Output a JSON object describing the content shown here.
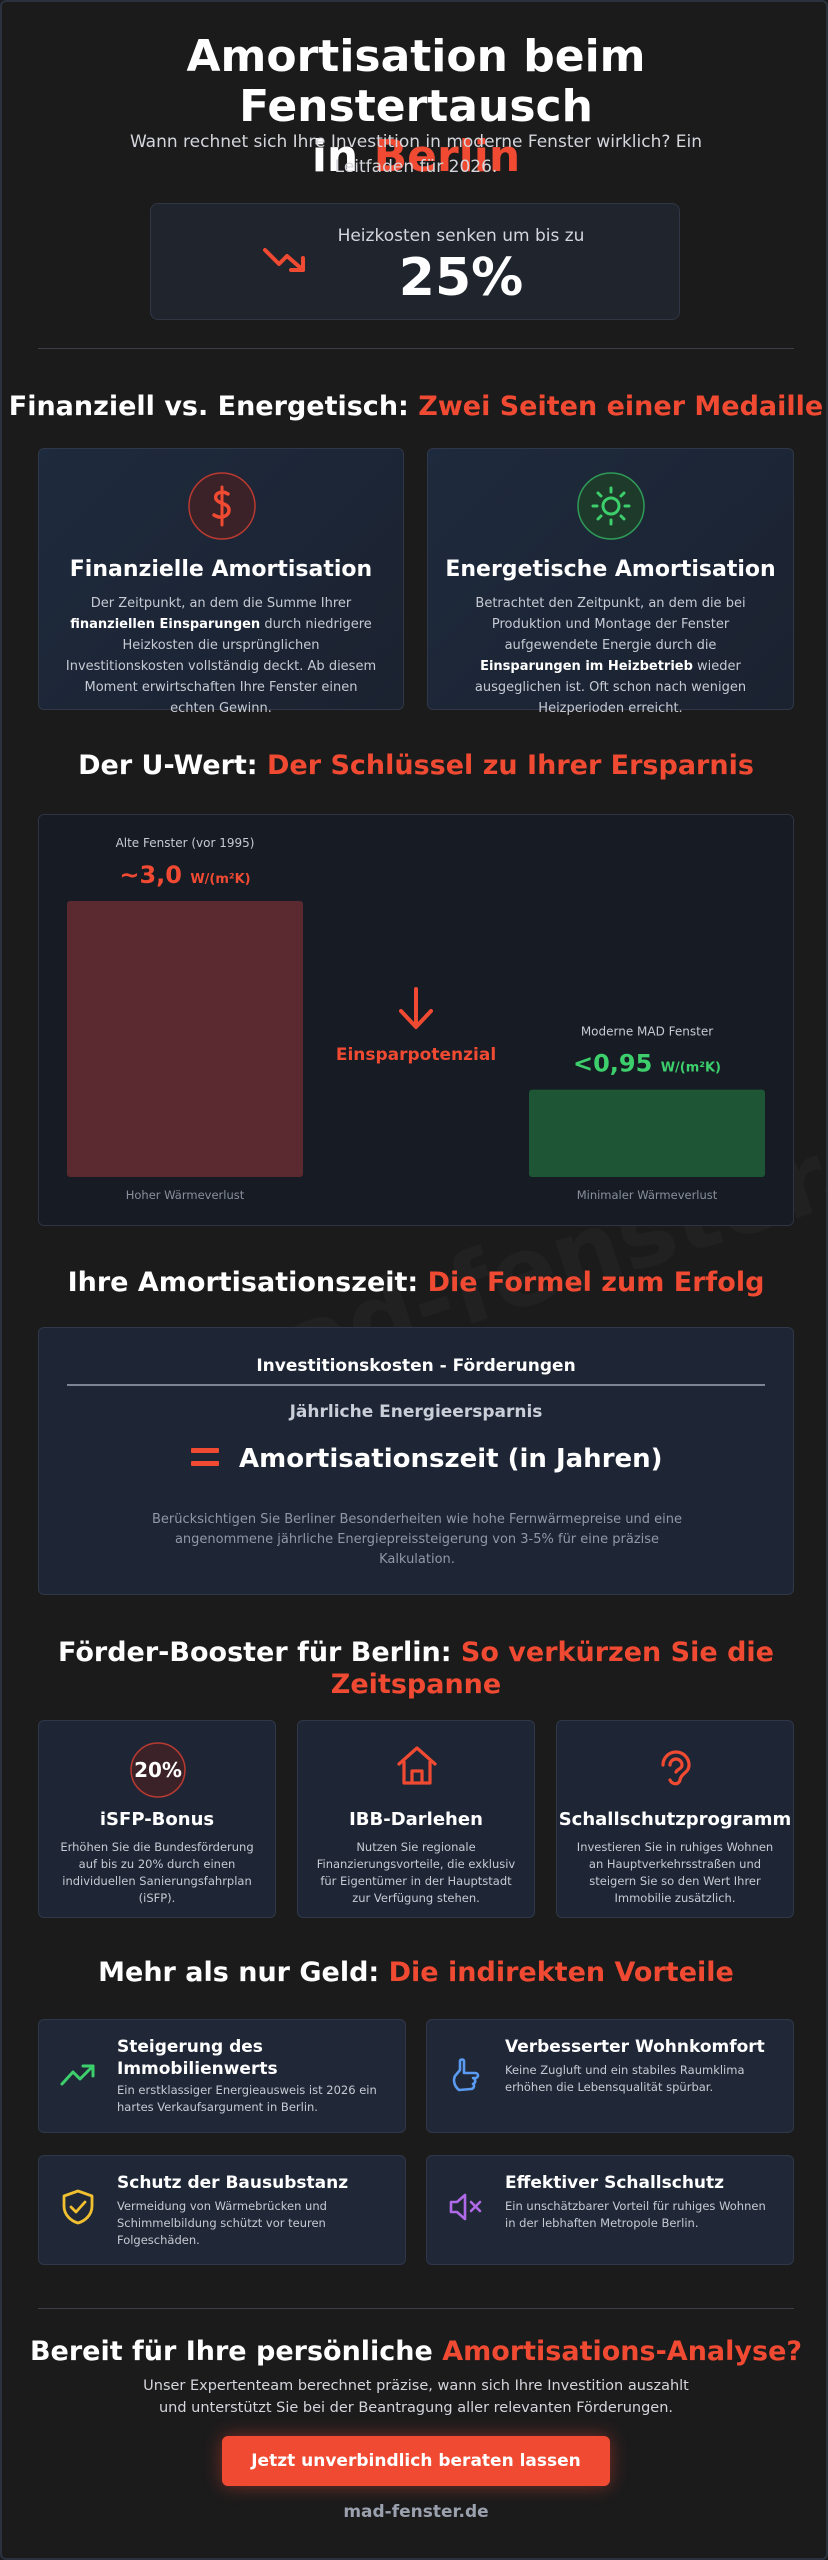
{
  "hero": {
    "title_line1": "Amortisation beim Fenstertausch",
    "title_line2_prefix": "in ",
    "title_line2_accent": "Berlin",
    "subtitle": "Wann rechnet sich Ihre Investition in moderne Fenster wirklich? Ein Leitfaden für 2026.",
    "box_label": "Heizkosten senken um bis zu",
    "box_value": "25%",
    "box_icon": "trending-down-icon"
  },
  "section_compare": {
    "title_prefix": "Finanziell vs. Energetisch: ",
    "title_accent": "Zwei Seiten einer Medaille",
    "cards": [
      {
        "icon": "dollar-icon",
        "title": "Finanzielle Amortisation",
        "text_before": "Der Zeitpunkt, an dem die Summe Ihrer ",
        "text_bold": "finanziellen Einsparungen",
        "text_after": " durch niedrigere Heizkosten die ursprünglichen Investitionskosten vollständig deckt. Ab diesem Moment erwirtschaften Ihre Fenster einen echten Gewinn."
      },
      {
        "icon": "sun-icon",
        "title": "Energetische Amortisation",
        "text_before": "Betrachtet den Zeitpunkt, an dem die bei Produktion und Montage der Fenster aufgewendete Energie durch die ",
        "text_bold": "Einsparungen im Heizbetrieb",
        "text_after": " wieder ausgeglichen ist. Oft schon nach wenigen Heizperioden erreicht."
      }
    ]
  },
  "section_uwert": {
    "title_prefix": "Der U-Wert: ",
    "title_accent": "Der Schlüssel zu Ihrer Ersparnis",
    "chart_data": {
      "type": "bar",
      "categories": [
        "Alte Fenster (vor 1995)",
        "Moderne MAD Fenster"
      ],
      "values": [
        3.0,
        0.95
      ],
      "value_labels": [
        "~3,0",
        "<0,95"
      ],
      "unit": "W/(m²K)",
      "bottom_labels": [
        "Hoher Wärmeverlust",
        "Minimaler Wärmeverlust"
      ],
      "colors": [
        "#5a2a30",
        "#1d5535"
      ],
      "value_colors": [
        "#f04a32",
        "#3ccf6b"
      ],
      "middle_label": "Einsparpotenzial",
      "ylim": [
        0,
        3.0
      ]
    }
  },
  "section_formula": {
    "title_prefix": "Ihre Amortisationszeit: ",
    "title_accent": "Die Formel zum Erfolg",
    "numerator": "Investitionskosten - Förderungen",
    "denominator": "Jährliche Energieersparnis",
    "result": "Amortisationszeit (in Jahren)",
    "note": "Berücksichtigen Sie Berliner Besonderheiten wie hohe Fernwärmepreise und eine angenommene jährliche Energiepreissteigerung von 3-5% für eine präzise Kalkulation."
  },
  "section_boost": {
    "title_line1_prefix": "Förder-Booster für Berlin: ",
    "title_line1_accent": "So verkürzen Sie die",
    "title_line2_accent": "Zeitspanne",
    "items": [
      {
        "badge": "20%",
        "title": "iSFP-Bonus",
        "text": "Erhöhen Sie die Bundesförderung auf bis zu 20% durch einen individuellen Sanierungsfahrplan (iSFP)."
      },
      {
        "icon": "home-icon",
        "title": "IBB-Darlehen",
        "text": "Nutzen Sie regionale Finanzierungsvorteile, die exklusiv für Eigentümer in der Hauptstadt zur Verfügung stehen."
      },
      {
        "icon": "ear-icon",
        "title": "Schallschutzprogramm",
        "text": "Investieren Sie in ruhiges Wohnen an Hauptverkehrsstraßen und steigern Sie so den Wert Ihrer Immobilie zusätzlich."
      }
    ]
  },
  "section_benefits": {
    "title_prefix": "Mehr als nur Geld: ",
    "title_accent": "Die indirekten Vorteile",
    "items": [
      {
        "icon": "trending-up-icon",
        "title_line1": "Steigerung des",
        "title_line2": "Immobilienwerts",
        "text": "Ein erstklassiger Energieausweis ist 2026 ein hartes Verkaufsargument in Berlin."
      },
      {
        "icon": "hand-icon",
        "title_line1": "Verbesserter Wohnkomfort",
        "title_line2": "",
        "text": "Keine Zugluft und ein stabiles Raumklima erhöhen die Lebensqualität spürbar."
      },
      {
        "icon": "shield-check-icon",
        "title_line1": "Schutz der Bausubstanz",
        "title_line2": "",
        "text": "Vermeidung von Wärmebrücken und Schimmelbildung schützt vor teuren Folgeschäden."
      },
      {
        "icon": "speaker-mute-icon",
        "title_line1": "Effektiver Schallschutz",
        "title_line2": "",
        "text": "Ein unschätzbarer Vorteil für ruhiges Wohnen in der lebhaften Metropole Berlin."
      }
    ]
  },
  "cta": {
    "title_prefix": "Bereit für Ihre persönliche ",
    "title_accent": "Amortisations-Analyse?",
    "text": "Unser Expertenteam berechnet präzise, wann sich Ihre Investition auszahlt und unterstützt Sie bei der Beantragung aller relevanten Förderungen.",
    "button_label": "Jetzt unverbindlich beraten lassen"
  },
  "footer": {
    "site": "mad-fenster.de",
    "watermark": "mad-fenster.de"
  },
  "colors": {
    "accent": "#f04a32",
    "green": "#3ccf6b",
    "background": "#1b1b1c",
    "card": "#1e2636"
  }
}
